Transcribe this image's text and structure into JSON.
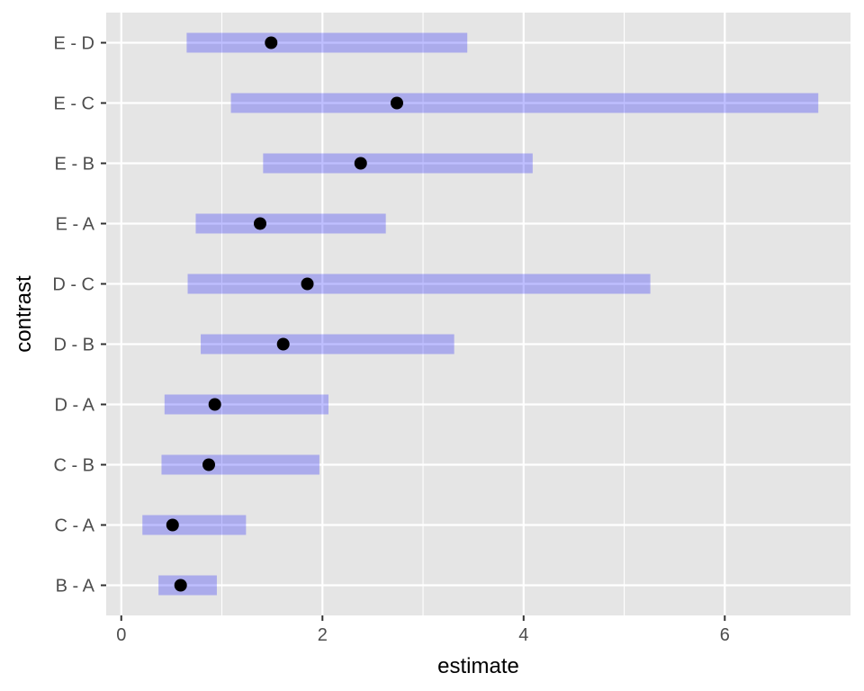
{
  "chart_data": {
    "type": "interval",
    "title": "",
    "xlabel": "estimate",
    "ylabel": "contrast",
    "xlim": [
      -0.15,
      7.25
    ],
    "xticks": [
      0,
      2,
      4,
      6
    ],
    "grid": true,
    "categories": [
      "B - A",
      "C - A",
      "C - B",
      "D - A",
      "D - B",
      "D - C",
      "E - A",
      "E - B",
      "E - C",
      "E - D"
    ],
    "estimate": [
      0.59,
      0.51,
      0.87,
      0.93,
      1.61,
      1.85,
      1.38,
      2.38,
      2.74,
      1.49
    ],
    "lower": [
      0.37,
      0.21,
      0.4,
      0.43,
      0.79,
      0.66,
      0.74,
      1.41,
      1.09,
      0.65
    ],
    "upper": [
      0.95,
      1.24,
      1.97,
      2.06,
      3.31,
      5.26,
      2.63,
      4.09,
      6.93,
      3.44
    ],
    "colors": {
      "panel": "#E5E5E5",
      "grid": "#FFFFFF",
      "interval": "#0000FF",
      "interval_opacity": 0.25,
      "point": "#000000"
    }
  }
}
